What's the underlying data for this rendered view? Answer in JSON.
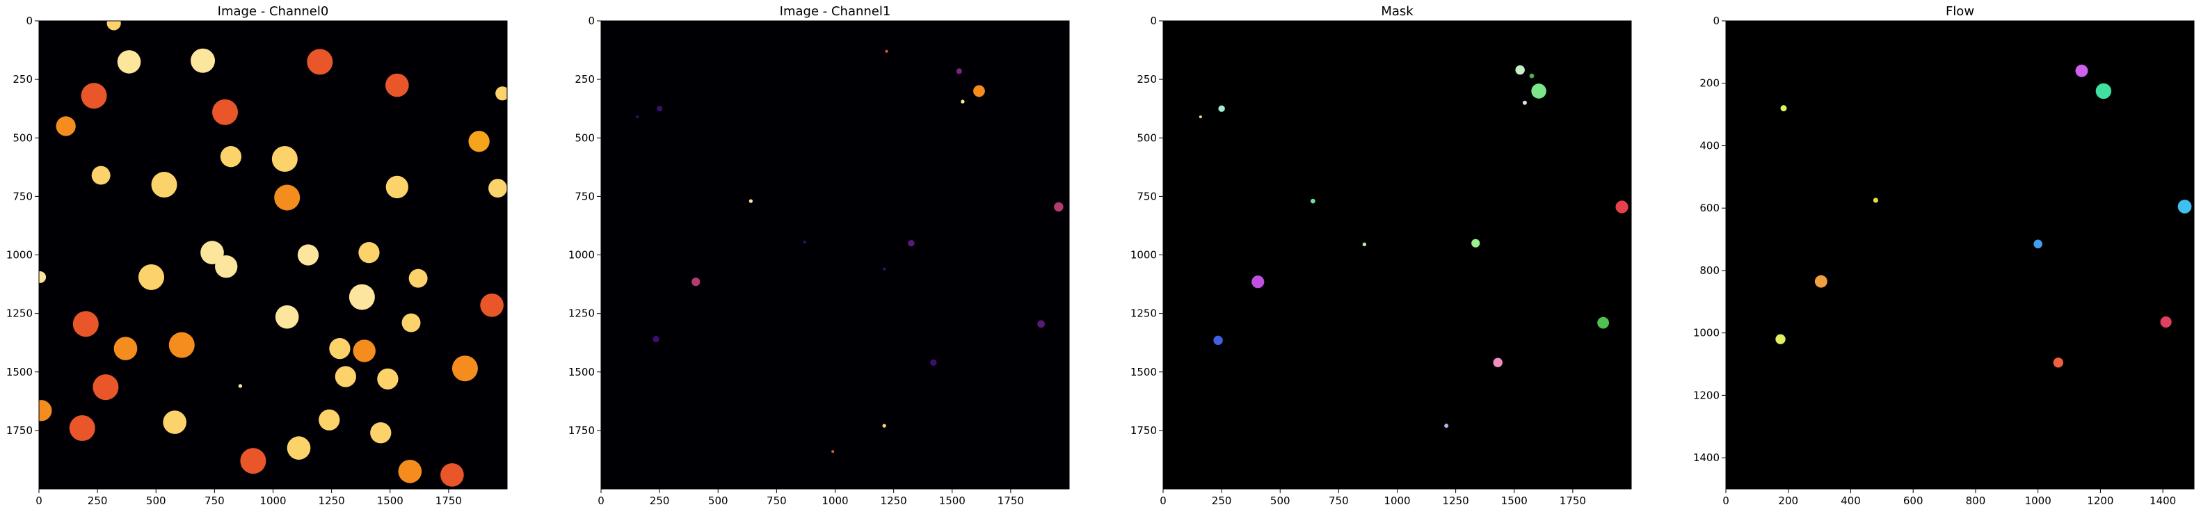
{
  "chart_data": [
    {
      "type": "heatmap",
      "title": "Image - Channel0",
      "colormap": "inferno",
      "xlim": [
        0,
        2000
      ],
      "ylim": [
        2000,
        0
      ],
      "xticks": [
        0,
        250,
        500,
        750,
        1000,
        1250,
        1500,
        1750
      ],
      "yticks": [
        0,
        250,
        500,
        750,
        1000,
        1250,
        1500,
        1750
      ],
      "xticklabels": [
        "0",
        "250",
        "500",
        "750",
        "1000",
        "1250",
        "1500",
        "1750"
      ],
      "yticklabels": [
        "0",
        "250",
        "500",
        "750",
        "1000",
        "1250",
        "1500",
        "1750"
      ],
      "background": "#000004",
      "blobs": [
        {
          "x": 320,
          "y": 10,
          "r": 30,
          "c": "#fcd36b"
        },
        {
          "x": 385,
          "y": 175,
          "r": 50,
          "c": "#fce59c"
        },
        {
          "x": 700,
          "y": 170,
          "r": 52,
          "c": "#fce59c"
        },
        {
          "x": 1200,
          "y": 175,
          "r": 55,
          "c": "#e8562a"
        },
        {
          "x": 1530,
          "y": 275,
          "r": 50,
          "c": "#e8562a"
        },
        {
          "x": 235,
          "y": 320,
          "r": 55,
          "c": "#e8562a"
        },
        {
          "x": 795,
          "y": 390,
          "r": 55,
          "c": "#e8562a"
        },
        {
          "x": 1980,
          "y": 310,
          "r": 30,
          "c": "#fcd36b"
        },
        {
          "x": 115,
          "y": 450,
          "r": 42,
          "c": "#f58d1e"
        },
        {
          "x": 1880,
          "y": 515,
          "r": 45,
          "c": "#f7a41d"
        },
        {
          "x": 1050,
          "y": 590,
          "r": 55,
          "c": "#fcd36b"
        },
        {
          "x": 820,
          "y": 580,
          "r": 45,
          "c": "#fcd36b"
        },
        {
          "x": 265,
          "y": 660,
          "r": 40,
          "c": "#fcd36b"
        },
        {
          "x": 535,
          "y": 700,
          "r": 55,
          "c": "#fcd36b"
        },
        {
          "x": 1060,
          "y": 755,
          "r": 55,
          "c": "#f58d1e"
        },
        {
          "x": 1530,
          "y": 710,
          "r": 48,
          "c": "#fcd36b"
        },
        {
          "x": 1960,
          "y": 715,
          "r": 40,
          "c": "#fcd36b"
        },
        {
          "x": 740,
          "y": 990,
          "r": 50,
          "c": "#fce59c"
        },
        {
          "x": 800,
          "y": 1050,
          "r": 48,
          "c": "#fce59c"
        },
        {
          "x": 1150,
          "y": 1000,
          "r": 45,
          "c": "#fce59c"
        },
        {
          "x": 1410,
          "y": 990,
          "r": 45,
          "c": "#fcd36b"
        },
        {
          "x": 5,
          "y": 1095,
          "r": 25,
          "c": "#fce59c"
        },
        {
          "x": 480,
          "y": 1095,
          "r": 55,
          "c": "#fcd36b"
        },
        {
          "x": 1620,
          "y": 1100,
          "r": 40,
          "c": "#fcd36b"
        },
        {
          "x": 1380,
          "y": 1180,
          "r": 55,
          "c": "#fce59c"
        },
        {
          "x": 1935,
          "y": 1215,
          "r": 50,
          "c": "#e8562a"
        },
        {
          "x": 1060,
          "y": 1265,
          "r": 50,
          "c": "#fce59c"
        },
        {
          "x": 200,
          "y": 1295,
          "r": 55,
          "c": "#e8562a"
        },
        {
          "x": 1590,
          "y": 1290,
          "r": 40,
          "c": "#fcd36b"
        },
        {
          "x": 370,
          "y": 1400,
          "r": 50,
          "c": "#f58d1e"
        },
        {
          "x": 610,
          "y": 1385,
          "r": 55,
          "c": "#f58d1e"
        },
        {
          "x": 1285,
          "y": 1400,
          "r": 45,
          "c": "#fcd36b"
        },
        {
          "x": 1390,
          "y": 1410,
          "r": 48,
          "c": "#f58d1e"
        },
        {
          "x": 1820,
          "y": 1485,
          "r": 55,
          "c": "#f58d1e"
        },
        {
          "x": 285,
          "y": 1565,
          "r": 55,
          "c": "#e8562a"
        },
        {
          "x": 1310,
          "y": 1520,
          "r": 45,
          "c": "#fcd36b"
        },
        {
          "x": 1490,
          "y": 1530,
          "r": 45,
          "c": "#fcd36b"
        },
        {
          "x": 10,
          "y": 1665,
          "r": 45,
          "c": "#f58d1e"
        },
        {
          "x": 185,
          "y": 1740,
          "r": 55,
          "c": "#e8562a"
        },
        {
          "x": 580,
          "y": 1715,
          "r": 50,
          "c": "#fcd36b"
        },
        {
          "x": 1240,
          "y": 1705,
          "r": 45,
          "c": "#fcd36b"
        },
        {
          "x": 1460,
          "y": 1760,
          "r": 45,
          "c": "#fcd36b"
        },
        {
          "x": 1110,
          "y": 1825,
          "r": 50,
          "c": "#fcd36b"
        },
        {
          "x": 915,
          "y": 1880,
          "r": 55,
          "c": "#e8562a"
        },
        {
          "x": 1585,
          "y": 1925,
          "r": 50,
          "c": "#f58d1e"
        },
        {
          "x": 1765,
          "y": 1940,
          "r": 50,
          "c": "#e8562a"
        },
        {
          "x": 860,
          "y": 1560,
          "r": 8,
          "c": "#fce59c"
        }
      ]
    },
    {
      "type": "heatmap",
      "title": "Image - Channel1",
      "colormap": "inferno",
      "xlim": [
        0,
        2000
      ],
      "ylim": [
        2000,
        0
      ],
      "xticks": [
        0,
        250,
        500,
        750,
        1000,
        1250,
        1500,
        1750
      ],
      "yticks": [
        0,
        250,
        500,
        750,
        1000,
        1250,
        1500,
        1750
      ],
      "xticklabels": [
        "0",
        "250",
        "500",
        "750",
        "1000",
        "1250",
        "1500",
        "1750"
      ],
      "yticklabels": [
        "0",
        "250",
        "500",
        "750",
        "1000",
        "1250",
        "1500",
        "1750"
      ],
      "background": "#000004",
      "blobs": [
        {
          "x": 1220,
          "y": 130,
          "r": 6,
          "c": "#e8562a"
        },
        {
          "x": 1530,
          "y": 215,
          "r": 12,
          "c": "#7a2582"
        },
        {
          "x": 1615,
          "y": 300,
          "r": 25,
          "c": "#f58d1e"
        },
        {
          "x": 1545,
          "y": 345,
          "r": 8,
          "c": "#fce59c"
        },
        {
          "x": 250,
          "y": 375,
          "r": 12,
          "c": "#3a0f6e"
        },
        {
          "x": 155,
          "y": 410,
          "r": 6,
          "c": "#3a0f6e"
        },
        {
          "x": 640,
          "y": 770,
          "r": 8,
          "c": "#fce59c"
        },
        {
          "x": 1955,
          "y": 795,
          "r": 20,
          "c": "#b43b6f"
        },
        {
          "x": 1325,
          "y": 950,
          "r": 14,
          "c": "#5a1a78"
        },
        {
          "x": 405,
          "y": 1115,
          "r": 18,
          "c": "#b43b6f"
        },
        {
          "x": 1880,
          "y": 1295,
          "r": 16,
          "c": "#5a1a78"
        },
        {
          "x": 235,
          "y": 1360,
          "r": 14,
          "c": "#3a0f6e"
        },
        {
          "x": 1420,
          "y": 1460,
          "r": 14,
          "c": "#3a0f6e"
        },
        {
          "x": 1210,
          "y": 1730,
          "r": 8,
          "c": "#fcd36b"
        },
        {
          "x": 990,
          "y": 1840,
          "r": 6,
          "c": "#e8562a"
        },
        {
          "x": 870,
          "y": 945,
          "r": 6,
          "c": "#3a0f6e"
        },
        {
          "x": 1210,
          "y": 1060,
          "r": 6,
          "c": "#3a0f6e"
        }
      ]
    },
    {
      "type": "heatmap",
      "title": "Mask",
      "xlim": [
        0,
        2000
      ],
      "ylim": [
        2000,
        0
      ],
      "xticks": [
        0,
        250,
        500,
        750,
        1000,
        1250,
        1500,
        1750
      ],
      "yticks": [
        0,
        250,
        500,
        750,
        1000,
        1250,
        1500,
        1750
      ],
      "xticklabels": [
        "0",
        "250",
        "500",
        "750",
        "1000",
        "1250",
        "1500",
        "1750"
      ],
      "yticklabels": [
        "0",
        "250",
        "500",
        "750",
        "1000",
        "1250",
        "1500",
        "1750"
      ],
      "background": "#000000",
      "blobs": [
        {
          "x": 1525,
          "y": 210,
          "r": 20,
          "c": "#c8f0c8"
        },
        {
          "x": 1575,
          "y": 235,
          "r": 10,
          "c": "#4caf50"
        },
        {
          "x": 1605,
          "y": 300,
          "r": 32,
          "c": "#7ee68a"
        },
        {
          "x": 1545,
          "y": 350,
          "r": 9,
          "c": "#e0e0e0"
        },
        {
          "x": 250,
          "y": 375,
          "r": 14,
          "c": "#a0f0d0"
        },
        {
          "x": 160,
          "y": 410,
          "r": 5,
          "c": "#ffe070"
        },
        {
          "x": 640,
          "y": 770,
          "r": 10,
          "c": "#70e0a0"
        },
        {
          "x": 1960,
          "y": 795,
          "r": 27,
          "c": "#e6404a"
        },
        {
          "x": 860,
          "y": 955,
          "r": 8,
          "c": "#c0f0a0"
        },
        {
          "x": 1335,
          "y": 950,
          "r": 18,
          "c": "#98f090"
        },
        {
          "x": 405,
          "y": 1115,
          "r": 27,
          "c": "#c050e0"
        },
        {
          "x": 1880,
          "y": 1290,
          "r": 25,
          "c": "#50c050"
        },
        {
          "x": 235,
          "y": 1365,
          "r": 20,
          "c": "#4060e0"
        },
        {
          "x": 1430,
          "y": 1460,
          "r": 20,
          "c": "#f090c0"
        },
        {
          "x": 1210,
          "y": 1730,
          "r": 9,
          "c": "#b0b0f0"
        }
      ]
    },
    {
      "type": "heatmap",
      "title": "Flow",
      "xlim": [
        0,
        1500
      ],
      "ylim": [
        1500,
        0
      ],
      "xticks": [
        0,
        200,
        400,
        600,
        800,
        1000,
        1200,
        1400
      ],
      "yticks": [
        0,
        200,
        400,
        600,
        800,
        1000,
        1200,
        1400
      ],
      "xticklabels": [
        "0",
        "200",
        "400",
        "600",
        "800",
        "1000",
        "1200",
        "1400"
      ],
      "yticklabels": [
        "0",
        "200",
        "400",
        "600",
        "800",
        "1000",
        "1200",
        "1400"
      ],
      "background": "#000000",
      "blobs": [
        {
          "x": 1140,
          "y": 160,
          "r": 20,
          "c": "#d060f0"
        },
        {
          "x": 1210,
          "y": 225,
          "r": 25,
          "c": "#40e0a0"
        },
        {
          "x": 185,
          "y": 280,
          "r": 10,
          "c": "#e0f060"
        },
        {
          "x": 480,
          "y": 575,
          "r": 8,
          "c": "#e0e040"
        },
        {
          "x": 1470,
          "y": 595,
          "r": 22,
          "c": "#40c0f0"
        },
        {
          "x": 1000,
          "y": 715,
          "r": 14,
          "c": "#40a0f0"
        },
        {
          "x": 305,
          "y": 835,
          "r": 20,
          "c": "#f0a040"
        },
        {
          "x": 1410,
          "y": 965,
          "r": 18,
          "c": "#e04060"
        },
        {
          "x": 175,
          "y": 1020,
          "r": 16,
          "c": "#e0f060"
        },
        {
          "x": 1065,
          "y": 1095,
          "r": 16,
          "c": "#f06040"
        }
      ]
    }
  ]
}
